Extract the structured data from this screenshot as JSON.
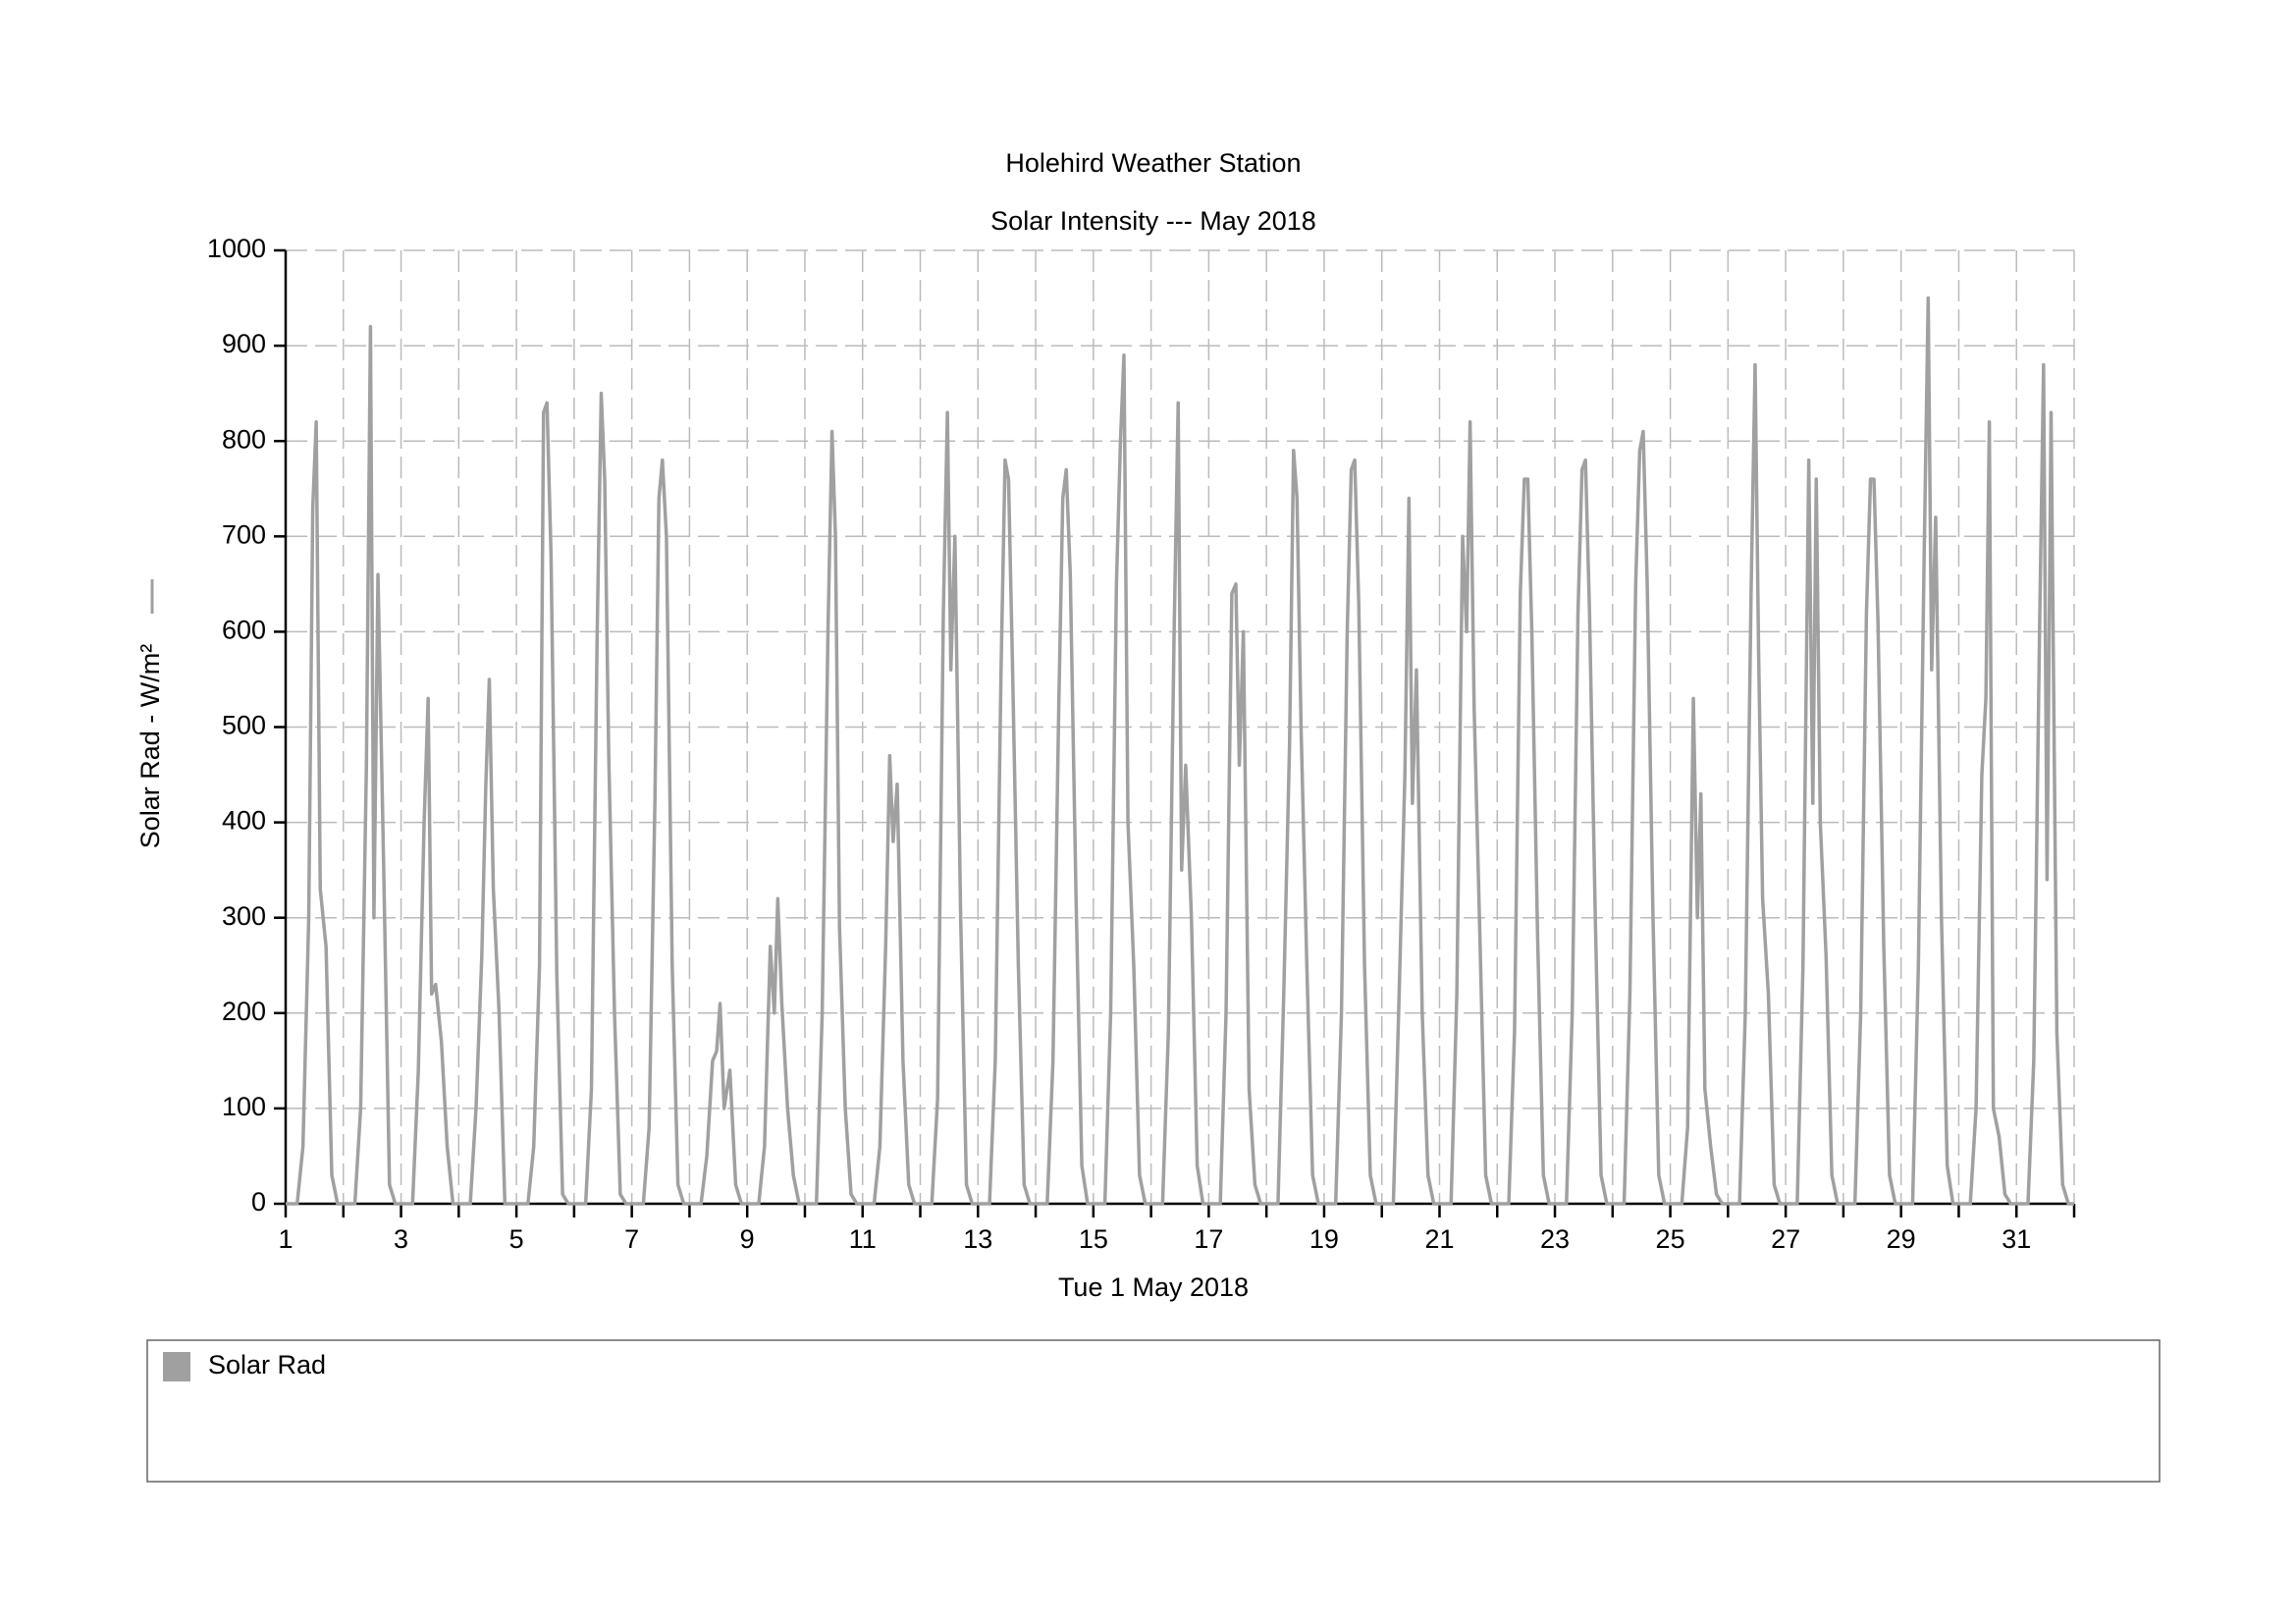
{
  "chart_data": {
    "type": "line",
    "title": "Holehird Weather Station",
    "subtitle": "Solar Intensity --- May 2018",
    "x_label": "Tue 1 May 2018",
    "y_label": "Solar Rad - W/m²",
    "xlim": [
      1,
      32
    ],
    "ylim": [
      0,
      1000
    ],
    "xticks": [
      1,
      3,
      5,
      7,
      9,
      11,
      13,
      15,
      17,
      19,
      21,
      23,
      25,
      27,
      29,
      31
    ],
    "xminorticks": [
      2,
      4,
      6,
      8,
      10,
      12,
      14,
      16,
      18,
      20,
      22,
      24,
      26,
      28,
      30,
      32
    ],
    "yticks": [
      0,
      100,
      200,
      300,
      400,
      500,
      600,
      700,
      800,
      900,
      1000
    ],
    "grid": true,
    "x": [
      1.0,
      1.2,
      1.3,
      1.4,
      1.47,
      1.53,
      1.6,
      1.7,
      1.8,
      1.9,
      2.2,
      2.3,
      2.4,
      2.47,
      2.53,
      2.6,
      2.7,
      2.8,
      2.9,
      3.2,
      3.3,
      3.4,
      3.47,
      3.53,
      3.6,
      3.7,
      3.8,
      3.9,
      4.2,
      4.3,
      4.4,
      4.47,
      4.53,
      4.6,
      4.7,
      4.8,
      4.9,
      5.2,
      5.3,
      5.4,
      5.47,
      5.53,
      5.6,
      5.7,
      5.8,
      5.9,
      6.2,
      6.3,
      6.4,
      6.47,
      6.53,
      6.6,
      6.7,
      6.8,
      6.9,
      7.2,
      7.3,
      7.4,
      7.47,
      7.53,
      7.6,
      7.7,
      7.8,
      7.9,
      8.2,
      8.3,
      8.4,
      8.47,
      8.53,
      8.6,
      8.7,
      8.8,
      8.9,
      9.2,
      9.3,
      9.4,
      9.47,
      9.53,
      9.6,
      9.7,
      9.8,
      9.9,
      10.2,
      10.3,
      10.4,
      10.47,
      10.53,
      10.6,
      10.7,
      10.8,
      10.9,
      11.2,
      11.3,
      11.4,
      11.47,
      11.53,
      11.6,
      11.7,
      11.8,
      11.9,
      12.2,
      12.3,
      12.4,
      12.47,
      12.53,
      12.6,
      12.7,
      12.8,
      12.9,
      13.2,
      13.3,
      13.4,
      13.47,
      13.53,
      13.6,
      13.7,
      13.8,
      13.9,
      14.2,
      14.3,
      14.4,
      14.47,
      14.53,
      14.6,
      14.7,
      14.8,
      14.9,
      15.2,
      15.3,
      15.4,
      15.47,
      15.53,
      15.6,
      15.7,
      15.8,
      15.9,
      16.2,
      16.3,
      16.4,
      16.47,
      16.53,
      16.6,
      16.7,
      16.8,
      16.9,
      17.2,
      17.3,
      17.4,
      17.47,
      17.53,
      17.6,
      17.7,
      17.8,
      17.9,
      18.2,
      18.3,
      18.4,
      18.47,
      18.53,
      18.6,
      18.7,
      18.8,
      18.9,
      19.2,
      19.3,
      19.4,
      19.47,
      19.53,
      19.6,
      19.7,
      19.8,
      19.9,
      20.2,
      20.3,
      20.4,
      20.47,
      20.53,
      20.6,
      20.7,
      20.8,
      20.9,
      21.2,
      21.3,
      21.4,
      21.47,
      21.53,
      21.6,
      21.7,
      21.8,
      21.9,
      22.2,
      22.3,
      22.4,
      22.47,
      22.53,
      22.6,
      22.7,
      22.8,
      22.9,
      23.2,
      23.3,
      23.4,
      23.47,
      23.53,
      23.6,
      23.7,
      23.8,
      23.9,
      24.2,
      24.3,
      24.4,
      24.47,
      24.53,
      24.6,
      24.7,
      24.8,
      24.9,
      25.2,
      25.3,
      25.4,
      25.47,
      25.53,
      25.6,
      25.7,
      25.8,
      25.9,
      26.2,
      26.3,
      26.4,
      26.47,
      26.53,
      26.6,
      26.7,
      26.8,
      26.9,
      27.2,
      27.3,
      27.4,
      27.47,
      27.53,
      27.6,
      27.7,
      27.8,
      27.9,
      28.2,
      28.3,
      28.4,
      28.47,
      28.53,
      28.6,
      28.7,
      28.8,
      28.9,
      29.2,
      29.3,
      29.4,
      29.47,
      29.53,
      29.6,
      29.7,
      29.8,
      29.9,
      30.2,
      30.3,
      30.4,
      30.47,
      30.53,
      30.6,
      30.7,
      30.8,
      30.9,
      31.2,
      31.3,
      31.4,
      31.47,
      31.53,
      31.6,
      31.7,
      31.8,
      31.9,
      32.0
    ],
    "series": [
      {
        "name": "Solar Rad",
        "color": "#a0a0a0",
        "values": [
          0,
          0,
          60,
          300,
          730,
          820,
          330,
          270,
          30,
          0,
          0,
          100,
          460,
          920,
          300,
          660,
          350,
          20,
          0,
          0,
          140,
          400,
          530,
          220,
          230,
          170,
          60,
          0,
          0,
          100,
          260,
          440,
          550,
          330,
          200,
          0,
          0,
          0,
          60,
          250,
          830,
          840,
          680,
          240,
          10,
          0,
          0,
          120,
          600,
          850,
          760,
          470,
          200,
          10,
          0,
          0,
          80,
          420,
          740,
          780,
          700,
          250,
          20,
          0,
          0,
          50,
          150,
          160,
          210,
          100,
          140,
          20,
          0,
          0,
          60,
          270,
          200,
          320,
          210,
          100,
          30,
          0,
          0,
          200,
          600,
          810,
          700,
          290,
          100,
          10,
          0,
          0,
          60,
          270,
          470,
          380,
          440,
          150,
          20,
          0,
          0,
          110,
          620,
          830,
          560,
          700,
          300,
          20,
          0,
          0,
          150,
          560,
          780,
          760,
          560,
          250,
          20,
          0,
          0,
          150,
          520,
          740,
          770,
          660,
          320,
          40,
          0,
          0,
          200,
          650,
          800,
          890,
          400,
          250,
          30,
          0,
          0,
          180,
          600,
          840,
          350,
          460,
          300,
          40,
          0,
          0,
          200,
          640,
          650,
          460,
          600,
          120,
          20,
          0,
          0,
          220,
          480,
          790,
          740,
          500,
          250,
          30,
          0,
          0,
          200,
          600,
          770,
          780,
          630,
          250,
          30,
          0,
          0,
          220,
          450,
          740,
          420,
          560,
          200,
          30,
          0,
          0,
          220,
          700,
          600,
          820,
          520,
          280,
          30,
          0,
          0,
          180,
          640,
          760,
          760,
          600,
          280,
          30,
          0,
          0,
          200,
          620,
          770,
          780,
          620,
          300,
          30,
          0,
          0,
          220,
          650,
          790,
          810,
          650,
          300,
          30,
          0,
          0,
          80,
          530,
          300,
          430,
          120,
          60,
          10,
          0,
          0,
          200,
          640,
          880,
          580,
          320,
          220,
          20,
          0,
          0,
          250,
          780,
          420,
          760,
          400,
          260,
          30,
          0,
          0,
          200,
          620,
          760,
          760,
          610,
          270,
          30,
          0,
          0,
          250,
          680,
          950,
          560,
          720,
          300,
          40,
          0,
          0,
          100,
          450,
          530,
          820,
          100,
          70,
          10,
          0,
          0,
          150,
          600,
          880,
          340,
          830,
          180,
          20,
          0,
          0
        ]
      }
    ]
  }
}
